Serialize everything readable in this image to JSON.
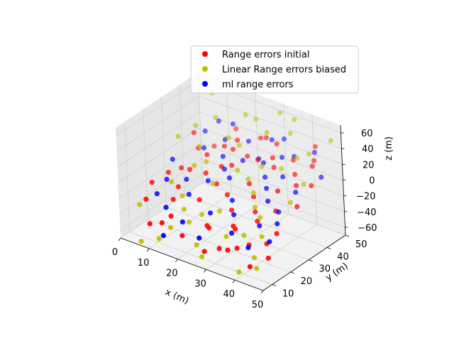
{
  "chart_data": {
    "type": "scatter",
    "projection": "3d",
    "xlabel": "x (m)",
    "ylabel": "y (m)",
    "zlabel": "z (m)",
    "xlim": [
      0,
      50
    ],
    "ylim": [
      5,
      50
    ],
    "zlim": [
      -70,
      70
    ],
    "xticks": [
      "0",
      "10",
      "20",
      "30",
      "40",
      "50"
    ],
    "yticks": [
      "10",
      "20",
      "30",
      "40",
      "50"
    ],
    "zticks": [
      "60",
      "40",
      "20",
      "0",
      "−20",
      "−40",
      "−60"
    ],
    "grid": true,
    "legend_position": "upper-right",
    "series": [
      {
        "name": "Range errors initial",
        "color": "#ff0000",
        "points": [
          [
            3,
            42,
            10
          ],
          [
            5,
            12,
            -25
          ],
          [
            6,
            30,
            -12
          ],
          [
            8,
            45,
            -5
          ],
          [
            10,
            6,
            -40
          ],
          [
            10,
            22,
            -18
          ],
          [
            12,
            35,
            5
          ],
          [
            14,
            48,
            20
          ],
          [
            15,
            10,
            -30
          ],
          [
            16,
            28,
            -2
          ],
          [
            18,
            40,
            12
          ],
          [
            20,
            8,
            -45
          ],
          [
            20,
            18,
            -15
          ],
          [
            22,
            33,
            8
          ],
          [
            24,
            46,
            25
          ],
          [
            25,
            14,
            -35
          ],
          [
            26,
            24,
            -10
          ],
          [
            28,
            38,
            15
          ],
          [
            29,
            6,
            -50
          ],
          [
            30,
            30,
            0
          ],
          [
            31,
            44,
            30
          ],
          [
            33,
            16,
            -28
          ],
          [
            34,
            26,
            -5
          ],
          [
            35,
            36,
            18
          ],
          [
            36,
            8,
            -42
          ],
          [
            38,
            42,
            22
          ],
          [
            39,
            20,
            -20
          ],
          [
            40,
            30,
            4
          ],
          [
            41,
            12,
            -35
          ],
          [
            42,
            48,
            35
          ],
          [
            43,
            24,
            -8
          ],
          [
            44,
            34,
            10
          ],
          [
            45,
            6,
            -48
          ],
          [
            46,
            40,
            28
          ],
          [
            47,
            18,
            -22
          ],
          [
            48,
            28,
            -2
          ],
          [
            49,
            10,
            -38
          ],
          [
            2,
            20,
            -20
          ],
          [
            7,
            38,
            2
          ],
          [
            12,
            16,
            -22
          ],
          [
            17,
            44,
            16
          ],
          [
            21,
            26,
            -6
          ],
          [
            27,
            12,
            -32
          ],
          [
            32,
            40,
            20
          ],
          [
            37,
            22,
            -14
          ],
          [
            41,
            38,
            14
          ],
          [
            46,
            14,
            -30
          ],
          [
            9,
            30,
            -10
          ],
          [
            23,
            40,
            10
          ],
          [
            33,
            8,
            -44
          ],
          [
            44,
            44,
            26
          ],
          [
            19,
            32,
            4
          ],
          [
            26,
            46,
            28
          ],
          [
            35,
            14,
            -26
          ],
          [
            48,
            36,
            12
          ],
          [
            4,
            26,
            -14
          ],
          [
            13,
            8,
            -38
          ],
          [
            38,
            10,
            -40
          ],
          [
            30,
            20,
            -18
          ],
          [
            15,
            40,
            12
          ]
        ]
      },
      {
        "name": "Linear Range errors biased",
        "color": "#bfbf00",
        "points": [
          [
            2,
            35,
            15
          ],
          [
            4,
            10,
            -30
          ],
          [
            6,
            48,
            55
          ],
          [
            9,
            20,
            -10
          ],
          [
            11,
            42,
            40
          ],
          [
            13,
            6,
            -55
          ],
          [
            15,
            30,
            8
          ],
          [
            17,
            14,
            -25
          ],
          [
            19,
            46,
            48
          ],
          [
            21,
            24,
            -2
          ],
          [
            23,
            36,
            30
          ],
          [
            25,
            8,
            -50
          ],
          [
            27,
            18,
            -20
          ],
          [
            29,
            42,
            45
          ],
          [
            31,
            28,
            10
          ],
          [
            33,
            12,
            -35
          ],
          [
            35,
            48,
            60
          ],
          [
            37,
            22,
            -8
          ],
          [
            39,
            34,
            25
          ],
          [
            41,
            6,
            -60
          ],
          [
            43,
            16,
            -28
          ],
          [
            45,
            40,
            42
          ],
          [
            47,
            26,
            5
          ],
          [
            49,
            46,
            55
          ],
          [
            8,
            4,
            -62
          ],
          [
            12,
            28,
            2
          ],
          [
            18,
            38,
            30
          ],
          [
            22,
            16,
            -28
          ],
          [
            28,
            6,
            -58
          ],
          [
            32,
            34,
            18
          ],
          [
            36,
            44,
            50
          ],
          [
            40,
            20,
            -14
          ],
          [
            44,
            10,
            -44
          ],
          [
            48,
            32,
            20
          ],
          [
            5,
            40,
            25
          ],
          [
            14,
            18,
            -18
          ],
          [
            24,
            44,
            52
          ],
          [
            34,
            26,
            0
          ],
          [
            42,
            38,
            36
          ],
          [
            46,
            8,
            -52
          ],
          [
            20,
            12,
            -34
          ],
          [
            30,
            48,
            62
          ],
          [
            38,
            14,
            -30
          ],
          [
            10,
            34,
            14
          ],
          [
            26,
            30,
            12
          ],
          [
            16,
            8,
            -40
          ]
        ]
      },
      {
        "name": "ml range errors",
        "color": "#0000ff",
        "points": [
          [
            3,
            30,
            -5
          ],
          [
            5,
            45,
            10
          ],
          [
            7,
            15,
            -20
          ],
          [
            9,
            38,
            5
          ],
          [
            11,
            25,
            -12
          ],
          [
            13,
            48,
            25
          ],
          [
            15,
            20,
            -18
          ],
          [
            17,
            36,
            8
          ],
          [
            19,
            10,
            -32
          ],
          [
            21,
            44,
            20
          ],
          [
            23,
            30,
            -2
          ],
          [
            25,
            16,
            -22
          ],
          [
            27,
            40,
            12
          ],
          [
            29,
            22,
            -10
          ],
          [
            31,
            48,
            30
          ],
          [
            33,
            34,
            6
          ],
          [
            35,
            12,
            -28
          ],
          [
            37,
            44,
            22
          ],
          [
            39,
            26,
            -4
          ],
          [
            41,
            18,
            -20
          ],
          [
            43,
            46,
            32
          ],
          [
            45,
            32,
            6
          ],
          [
            47,
            14,
            -26
          ],
          [
            49,
            40,
            18
          ],
          [
            6,
            22,
            -14
          ],
          [
            14,
            42,
            16
          ],
          [
            20,
            32,
            2
          ],
          [
            26,
            8,
            -40
          ],
          [
            32,
            18,
            -18
          ],
          [
            38,
            36,
            10
          ],
          [
            44,
            24,
            -8
          ],
          [
            8,
            48,
            22
          ],
          [
            18,
            26,
            -6
          ],
          [
            28,
            46,
            28
          ],
          [
            36,
            30,
            2
          ],
          [
            42,
            10,
            -34
          ],
          [
            12,
            12,
            -26
          ],
          [
            24,
            36,
            12
          ],
          [
            34,
            42,
            20
          ],
          [
            46,
            20,
            -14
          ],
          [
            16,
            4,
            -44
          ],
          [
            30,
            38,
            14
          ]
        ]
      }
    ]
  }
}
